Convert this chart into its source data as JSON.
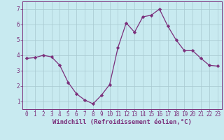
{
  "x": [
    0,
    1,
    2,
    3,
    4,
    5,
    6,
    7,
    8,
    9,
    10,
    11,
    12,
    13,
    14,
    15,
    16,
    17,
    18,
    19,
    20,
    21,
    22,
    23
  ],
  "y": [
    3.8,
    3.85,
    4.0,
    3.9,
    3.35,
    2.25,
    1.5,
    1.1,
    0.85,
    1.4,
    2.1,
    4.5,
    6.1,
    5.5,
    6.5,
    6.6,
    7.0,
    5.9,
    5.0,
    4.3,
    4.3,
    3.8,
    3.35,
    3.3
  ],
  "line_color": "#7b2f7b",
  "marker": "D",
  "marker_size": 2.2,
  "bg_color": "#c8eaf0",
  "grid_color": "#a8c8d0",
  "xlabel": "Windchill (Refroidissement éolien,°C)",
  "xlabel_color": "#7b2f7b",
  "tick_color": "#7b2f7b",
  "ylim": [
    0.5,
    7.5
  ],
  "xlim": [
    -0.5,
    23.5
  ],
  "yticks": [
    1,
    2,
    3,
    4,
    5,
    6,
    7
  ],
  "xticks": [
    0,
    1,
    2,
    3,
    4,
    5,
    6,
    7,
    8,
    9,
    10,
    11,
    12,
    13,
    14,
    15,
    16,
    17,
    18,
    19,
    20,
    21,
    22,
    23
  ],
  "tick_fontsize": 5.5,
  "label_fontsize": 6.5
}
